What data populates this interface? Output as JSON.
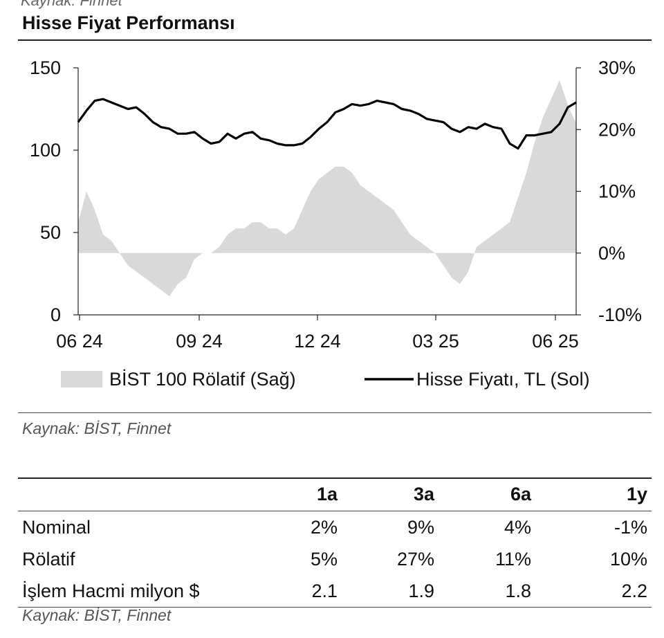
{
  "header_cut_text": "Kaynak: Finnet",
  "title": "Hisse Fiyat Performansı",
  "chart_data": {
    "type": "line+area",
    "x_ticks": [
      "06 24",
      "09 24",
      "12 24",
      "03 25",
      "06 25"
    ],
    "y_left": {
      "ticks": [
        "150",
        "100",
        "50",
        "0"
      ],
      "range": [
        0,
        150
      ]
    },
    "y_right": {
      "ticks": [
        "30%",
        "20%",
        "10%",
        "0%",
        "-10%"
      ],
      "range": [
        -10,
        30
      ]
    },
    "legend": [
      {
        "name": "BİST 100 Rölatif (Sağ)",
        "style": "area",
        "color": "#d9d9d9"
      },
      {
        "name": "Hisse Fiyatı, TL (Sol)",
        "style": "line",
        "color": "#000000"
      }
    ],
    "series": [
      {
        "name": "Hisse Fiyatı, TL (Sol)",
        "axis": "left",
        "x_index": [
          0,
          1,
          2,
          3,
          4,
          5,
          6,
          7,
          8,
          9,
          10,
          11,
          12,
          13,
          14,
          15,
          16,
          17,
          18,
          19,
          20,
          21,
          22,
          23,
          24,
          25,
          26,
          27,
          28,
          29,
          30,
          31,
          32,
          33,
          34,
          35,
          36,
          37,
          38,
          39,
          40,
          41,
          42,
          43,
          44,
          45,
          46,
          47,
          48,
          49,
          50,
          51,
          52,
          53,
          54,
          55,
          56,
          57,
          58,
          59,
          60
        ],
        "values": [
          117,
          124,
          130,
          131,
          129,
          127,
          125,
          126,
          122,
          117,
          114,
          113,
          110,
          110,
          111,
          107,
          104,
          105,
          110,
          107,
          110,
          111,
          107,
          106,
          104,
          103,
          103,
          104,
          108,
          113,
          117,
          123,
          125,
          128,
          127,
          128,
          130,
          129,
          128,
          125,
          124,
          122,
          119,
          118,
          117,
          113,
          111,
          114,
          113,
          116,
          114,
          113,
          104,
          101,
          109,
          109,
          110,
          111,
          116,
          126,
          129
        ]
      },
      {
        "name": "BİST 100 Rölatif (Sağ)",
        "axis": "right",
        "x_index": [
          0,
          1,
          2,
          3,
          4,
          5,
          6,
          7,
          8,
          9,
          10,
          11,
          12,
          13,
          14,
          15,
          16,
          17,
          18,
          19,
          20,
          21,
          22,
          23,
          24,
          25,
          26,
          27,
          28,
          29,
          30,
          31,
          32,
          33,
          34,
          35,
          36,
          37,
          38,
          39,
          40,
          41,
          42,
          43,
          44,
          45,
          46,
          47,
          48,
          49,
          50,
          51,
          52,
          53,
          54,
          55,
          56,
          57,
          58,
          59,
          60
        ],
        "values": [
          5,
          10,
          7,
          3,
          2,
          0,
          -2,
          -3,
          -4,
          -5,
          -6,
          -7,
          -5,
          -4,
          -1,
          0,
          0,
          1,
          3,
          4,
          4,
          5,
          5,
          4,
          4,
          3,
          4,
          7,
          10,
          12,
          13,
          14,
          14,
          13,
          11,
          10,
          9,
          8,
          7,
          5,
          3,
          2,
          1,
          0,
          -2,
          -4,
          -5,
          -3,
          1,
          2,
          3,
          4,
          5,
          9,
          13,
          18,
          22,
          25,
          28,
          24,
          21
        ],
        "ylim": [
          -10,
          30
        ]
      }
    ]
  },
  "source1": "Kaynak: BİST, Finnet",
  "table": {
    "headers": [
      "",
      "1a",
      "3a",
      "6a",
      "1y"
    ],
    "rows": [
      {
        "label": "Nominal",
        "values": [
          "2%",
          "9%",
          "4%",
          "-1%"
        ]
      },
      {
        "label": "Rölatif",
        "values": [
          "5%",
          "27%",
          "11%",
          "10%"
        ]
      },
      {
        "label": "İşlem Hacmi milyon $",
        "values": [
          "2.1",
          "1.9",
          "1.8",
          "2.2"
        ]
      }
    ]
  },
  "source2": "Kaynak: BİST, Finnet"
}
